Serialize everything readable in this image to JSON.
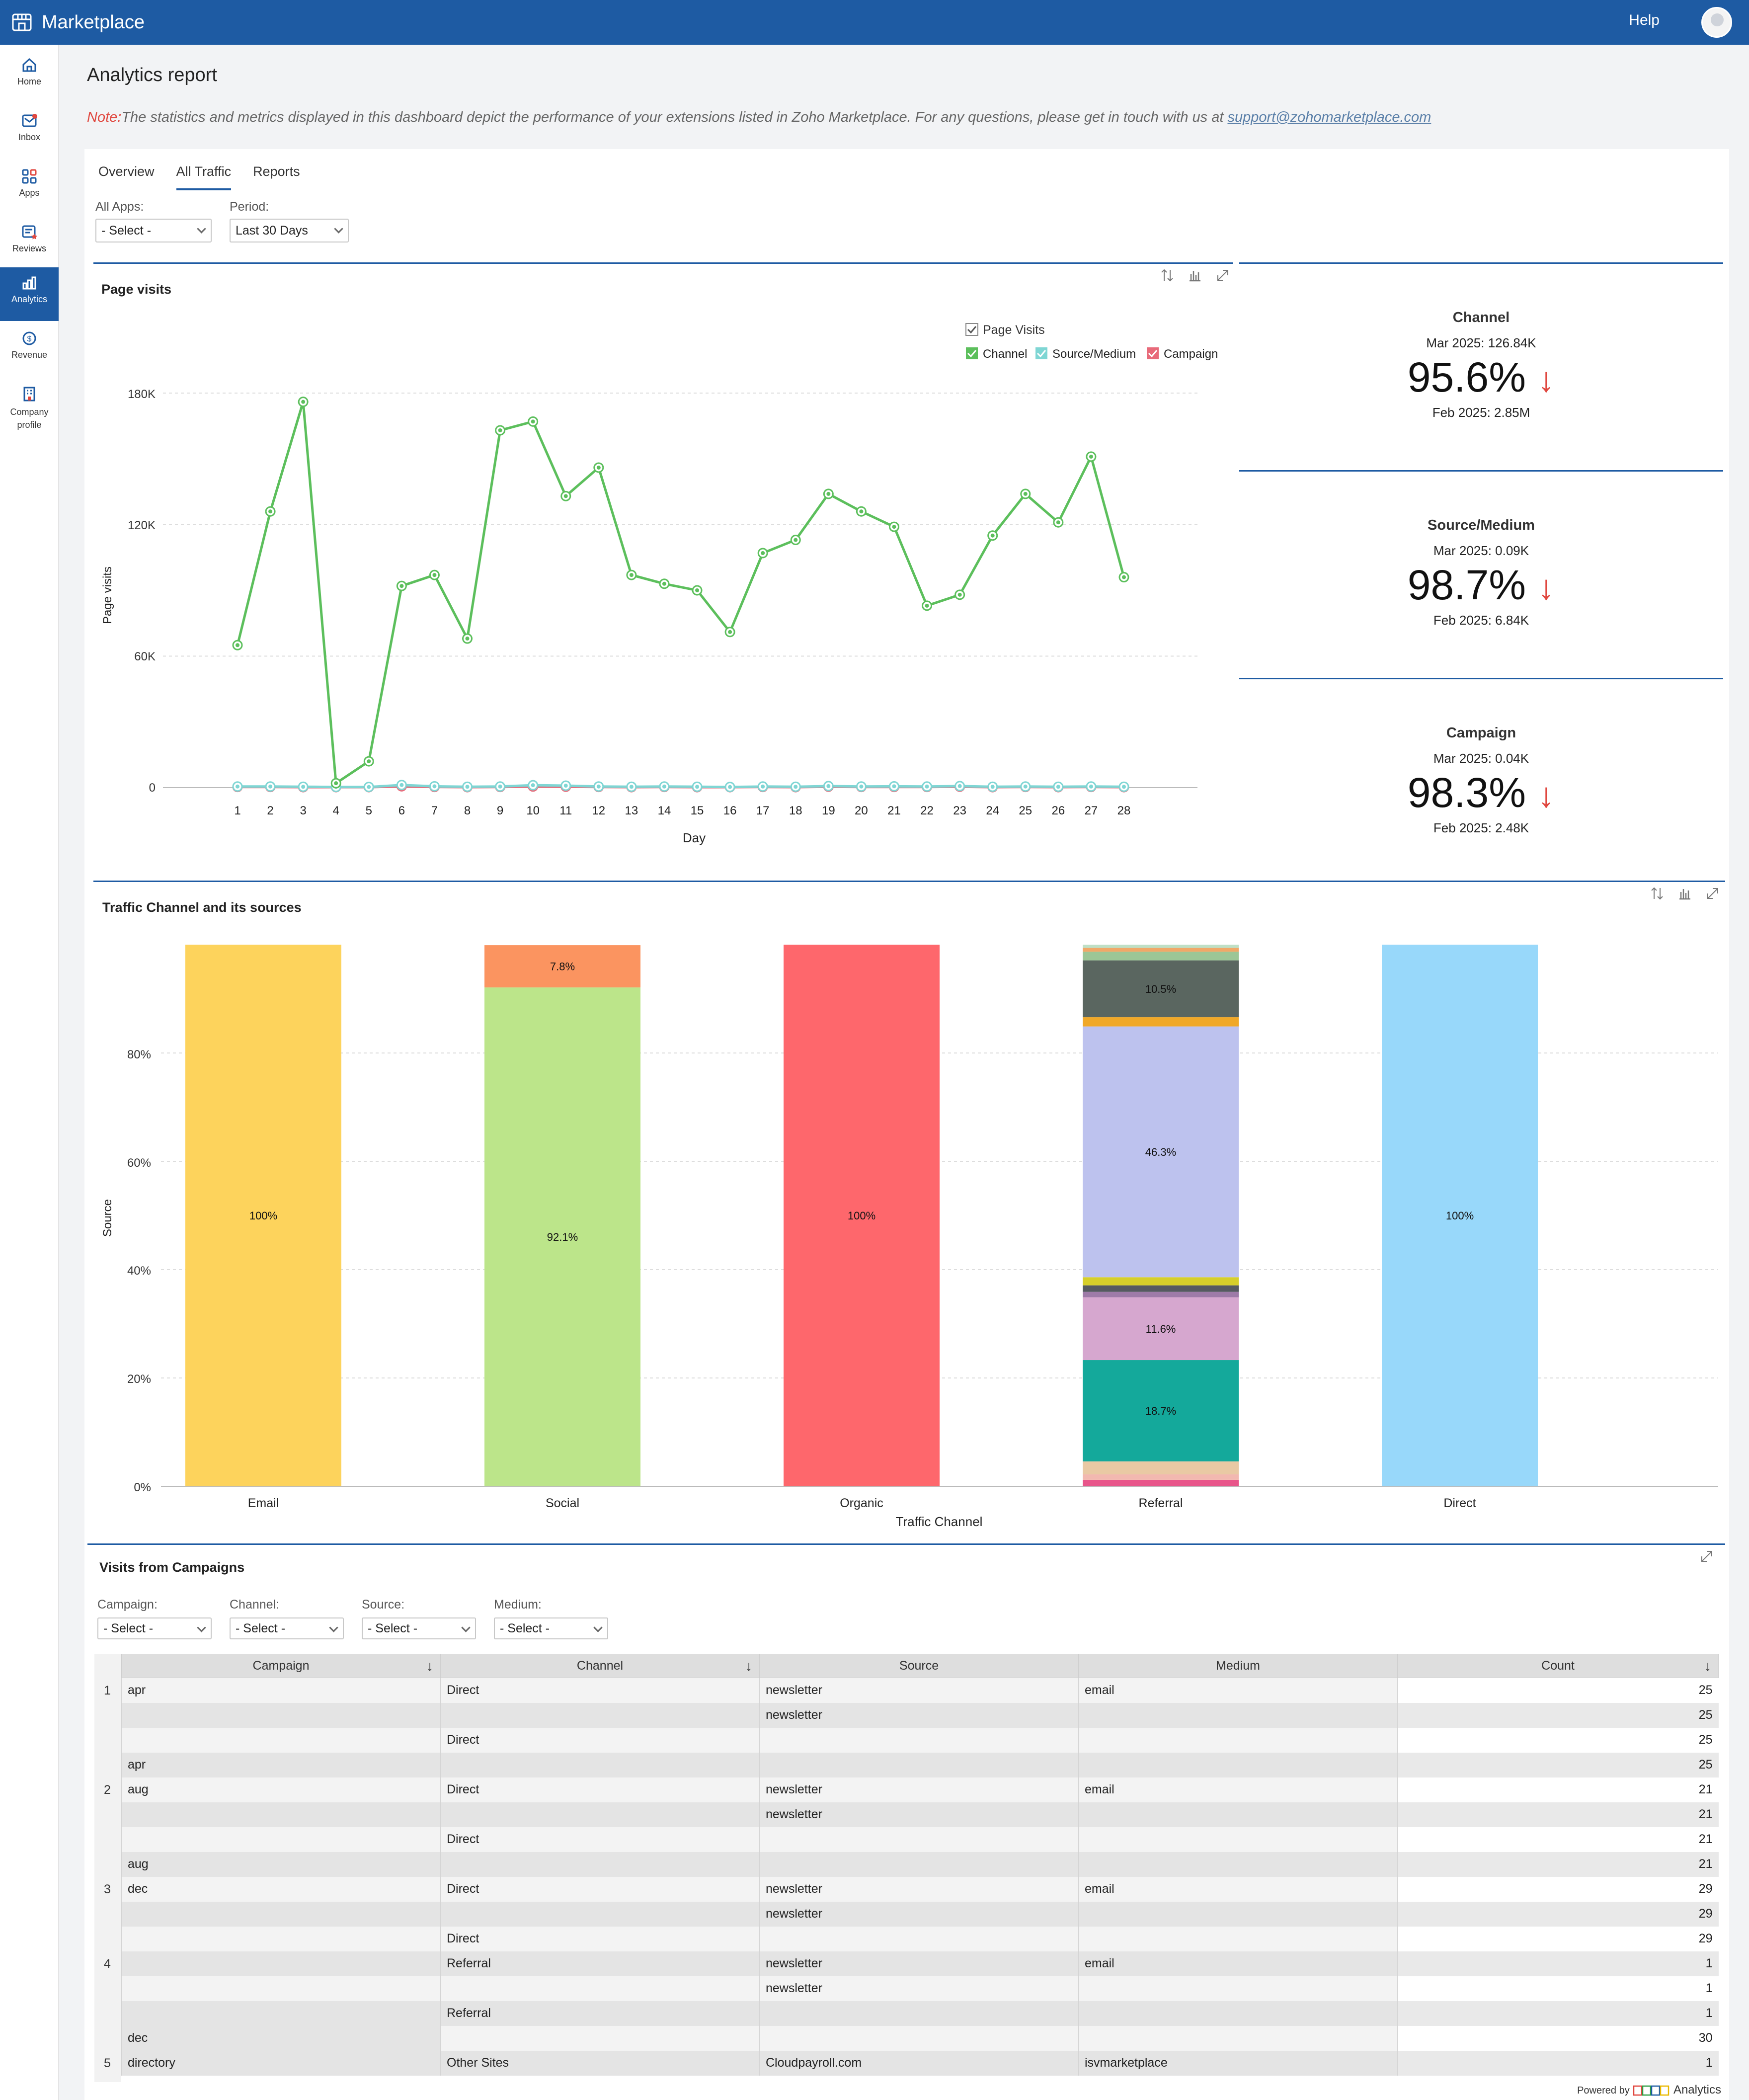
{
  "header": {
    "title": "Marketplace",
    "help": "Help"
  },
  "nav": [
    {
      "label": "Home",
      "icon": "home-icon"
    },
    {
      "label": "Inbox",
      "icon": "inbox-icon"
    },
    {
      "label": "Apps",
      "icon": "apps-icon"
    },
    {
      "label": "Reviews",
      "icon": "reviews-icon"
    },
    {
      "label": "Analytics",
      "icon": "analytics-icon",
      "active": true
    },
    {
      "label": "Revenue",
      "icon": "revenue-icon"
    },
    {
      "label": "Company profile",
      "icon": "company-icon"
    }
  ],
  "page": {
    "title": "Analytics report",
    "note_label": "Note:",
    "note_text": "The statistics and metrics displayed in this dashboard depict the performance of your extensions listed in Zoho Marketplace. For any questions, please get in touch with us at ",
    "note_email": "support@zohomarketplace.com"
  },
  "tabs": [
    "Overview",
    "All Traffic",
    "Reports"
  ],
  "filters": {
    "apps_label": "All Apps:",
    "apps_value": "- Select -",
    "period_label": "Period:",
    "period_value": "Last 30 Days"
  },
  "page_visits_chart": {
    "title": "Page visits",
    "legend_title": "Page Visits",
    "legend": [
      "Channel",
      "Source/Medium",
      "Campaign"
    ],
    "ylabel": "Page visits",
    "xlabel": "Day",
    "ytick_labels": [
      "0",
      "60K",
      "120K",
      "180K"
    ]
  },
  "kpis": [
    {
      "label": "Channel",
      "current": "Mar 2025: 126.84K",
      "value": "95.6%",
      "arrow": "↓",
      "previous": "Feb 2025: 2.85M"
    },
    {
      "label": "Source/Medium",
      "current": "Mar 2025: 0.09K",
      "value": "98.7%",
      "arrow": "↓",
      "previous": "Feb 2025: 6.84K"
    },
    {
      "label": "Campaign",
      "current": "Mar 2025: 0.04K",
      "value": "98.3%",
      "arrow": "↓",
      "previous": "Feb 2025: 2.48K"
    }
  ],
  "traffic_chart": {
    "title": "Traffic Channel and its sources",
    "ylabel": "Source",
    "xlabel": "Traffic Channel",
    "ytick_labels": [
      "0%",
      "20%",
      "40%",
      "60%",
      "80%"
    ]
  },
  "campaigns": {
    "title": "Visits from Campaigns",
    "filters": [
      {
        "label": "Campaign:",
        "value": "- Select -"
      },
      {
        "label": "Channel:",
        "value": "- Select -"
      },
      {
        "label": "Source:",
        "value": "- Select -"
      },
      {
        "label": "Medium:",
        "value": "- Select -"
      }
    ],
    "columns": [
      "Campaign",
      "Channel",
      "Source",
      "Medium",
      "Count"
    ],
    "rows": [
      {
        "n": "1",
        "campaign": "apr",
        "channel": "Direct",
        "source": "newsletter",
        "medium": "email",
        "count": "25"
      },
      {
        "n": "",
        "campaign": "",
        "channel": "",
        "source": "newsletter",
        "medium": "",
        "count": "25"
      },
      {
        "n": "",
        "campaign": "",
        "channel": "Direct",
        "source": "",
        "medium": "",
        "count": "25"
      },
      {
        "n": "",
        "campaign": "apr",
        "channel": "",
        "source": "",
        "medium": "",
        "count": "25"
      },
      {
        "n": "2",
        "campaign": "aug",
        "channel": "Direct",
        "source": "newsletter",
        "medium": "email",
        "count": "21"
      },
      {
        "n": "",
        "campaign": "",
        "channel": "",
        "source": "newsletter",
        "medium": "",
        "count": "21"
      },
      {
        "n": "",
        "campaign": "",
        "channel": "Direct",
        "source": "",
        "medium": "",
        "count": "21"
      },
      {
        "n": "",
        "campaign": "aug",
        "channel": "",
        "source": "",
        "medium": "",
        "count": "21"
      },
      {
        "n": "3",
        "campaign": "dec",
        "channel": "Direct",
        "source": "newsletter",
        "medium": "email",
        "count": "29"
      },
      {
        "n": "",
        "campaign": "",
        "channel": "",
        "source": "newsletter",
        "medium": "",
        "count": "29"
      },
      {
        "n": "",
        "campaign": "",
        "channel": "Direct",
        "source": "",
        "medium": "",
        "count": "29"
      },
      {
        "n": "4",
        "campaign": "",
        "channel": "Referral",
        "source": "newsletter",
        "medium": "email",
        "count": "1"
      },
      {
        "n": "",
        "campaign": "",
        "channel": "",
        "source": "newsletter",
        "medium": "",
        "count": "1"
      },
      {
        "n": "",
        "campaign": "",
        "channel": "Referral",
        "source": "",
        "medium": "",
        "count": "1"
      },
      {
        "n": "",
        "campaign": "dec",
        "channel": "",
        "source": "",
        "medium": "",
        "count": "30"
      },
      {
        "n": "5",
        "campaign": "directory",
        "channel": "Other Sites",
        "source": "Cloudpayroll.com",
        "medium": "isvmarketplace",
        "count": "1"
      }
    ]
  },
  "footer": {
    "powered": "Powered by",
    "brand": "Analytics"
  },
  "chart_data": [
    {
      "type": "line",
      "title": "Page visits",
      "xlabel": "Day",
      "ylabel": "Page visits",
      "ylim": [
        0,
        180000
      ],
      "legend": "top-right",
      "x": [
        1,
        2,
        3,
        4,
        5,
        6,
        7,
        8,
        9,
        10,
        11,
        12,
        13,
        14,
        15,
        16,
        17,
        18,
        19,
        20,
        21,
        22,
        23,
        24,
        25,
        26,
        27,
        28
      ],
      "series": [
        {
          "name": "Channel",
          "color": "#5cbf5c",
          "values": [
            65000,
            126000,
            176000,
            2000,
            12000,
            92000,
            97000,
            68000,
            163000,
            167000,
            133000,
            146000,
            97000,
            93000,
            90000,
            71000,
            107000,
            113000,
            134000,
            126000,
            119000,
            83000,
            88000,
            115000,
            134000,
            121000,
            151000,
            96000
          ]
        },
        {
          "name": "Source/Medium",
          "color": "#7fd6d4",
          "values": [
            500,
            500,
            400,
            300,
            300,
            1200,
            600,
            400,
            500,
            1100,
            900,
            500,
            400,
            500,
            400,
            300,
            500,
            400,
            700,
            500,
            600,
            500,
            700,
            400,
            500,
            400,
            500,
            400
          ]
        },
        {
          "name": "Campaign",
          "color": "#e86a7a",
          "values": [
            300,
            300,
            200,
            200,
            200,
            600,
            300,
            200,
            300,
            500,
            400,
            300,
            200,
            300,
            200,
            200,
            300,
            200,
            400,
            300,
            300,
            300,
            400,
            200,
            300,
            200,
            300,
            200
          ]
        }
      ]
    },
    {
      "type": "bar",
      "stacked": true,
      "title": "Traffic Channel and its sources",
      "xlabel": "Traffic Channel",
      "ylabel": "Source",
      "ylim": [
        0,
        100
      ],
      "categories": [
        "Email",
        "Social",
        "Organic",
        "Referral",
        "Direct"
      ],
      "stacks": [
        [
          {
            "value": 100,
            "label": "100%",
            "color": "#fdd35c"
          }
        ],
        [
          {
            "value": 92.1,
            "label": "92.1%",
            "color": "#bce58a"
          },
          {
            "value": 7.8,
            "label": "7.8%",
            "color": "#fb9460"
          }
        ],
        [
          {
            "value": 100,
            "label": "100%",
            "color": "#fe676c"
          }
        ],
        [
          {
            "value": 1.2,
            "color": "#e8558a"
          },
          {
            "value": 1.0,
            "color": "#f2b8b0"
          },
          {
            "value": 2.4,
            "color": "#e9c9a4"
          },
          {
            "value": 18.7,
            "label": "18.7%",
            "color": "#14a99b"
          },
          {
            "value": 11.6,
            "label": "11.6%",
            "color": "#d6a7cf"
          },
          {
            "value": 1.0,
            "color": "#9e7ba8"
          },
          {
            "value": 1.2,
            "color": "#555a60"
          },
          {
            "value": 1.5,
            "color": "#d6cf2a"
          },
          {
            "value": 46.3,
            "label": "46.3%",
            "color": "#bdc2ee"
          },
          {
            "value": 1.7,
            "color": "#f0a828"
          },
          {
            "value": 10.5,
            "label": "10.5%",
            "color": "#5a6660"
          },
          {
            "value": 1.6,
            "color": "#9cc696"
          },
          {
            "value": 0.7,
            "color": "#f0a868"
          },
          {
            "value": 0.6,
            "color": "#bfe0c6"
          }
        ],
        [
          {
            "value": 100,
            "label": "100%",
            "color": "#98d8fa"
          }
        ]
      ]
    }
  ]
}
